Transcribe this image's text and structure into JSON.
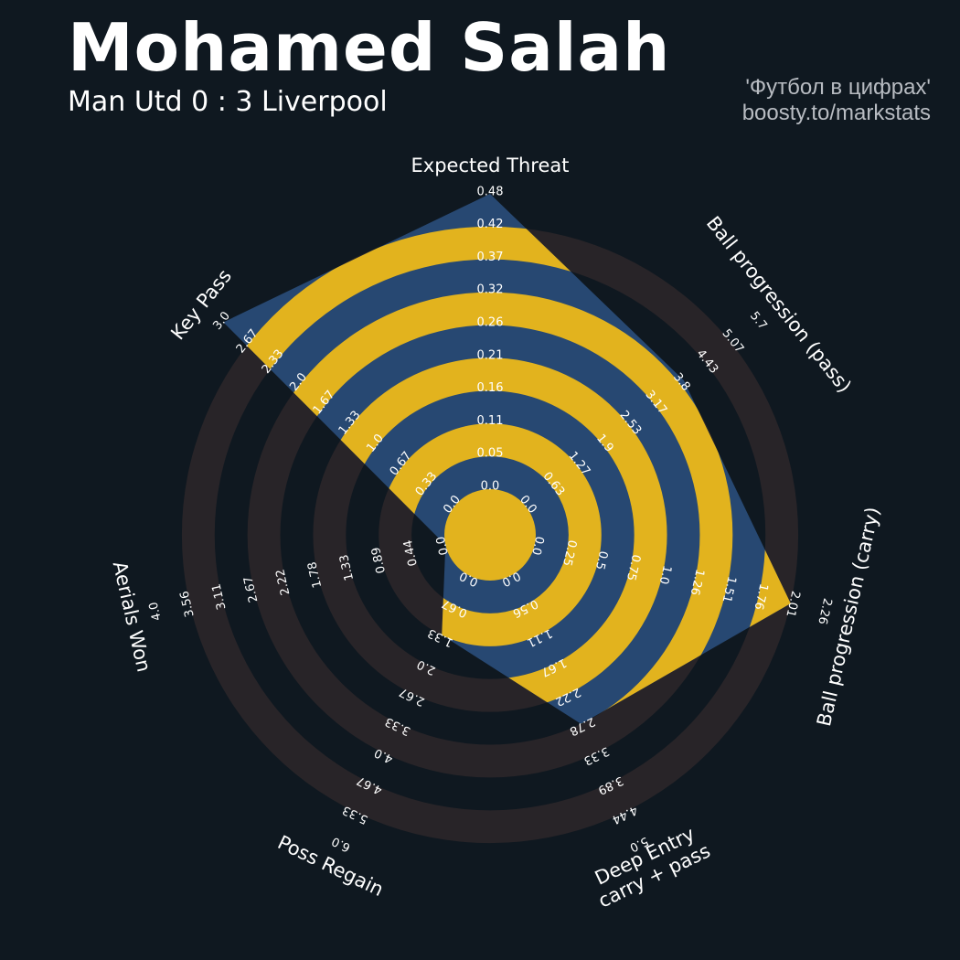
{
  "header": {
    "title": "Mohamed Salah",
    "subtitle": "Man Utd 0 : 3 Liverpool",
    "credit_line1": "'Футбол в цифрах'",
    "credit_line2": "boosty.to/markstats"
  },
  "chart_data": {
    "type": "radar",
    "title": "Mohamed Salah",
    "subtitle": "Man Utd 0 : 3 Liverpool",
    "axes": [
      {
        "label": "Expected Threat",
        "value": 0.48,
        "ticks": [
          "0.0",
          "0.05",
          "0.11",
          "0.16",
          "0.21",
          "0.26",
          "0.32",
          "0.37",
          "0.42",
          "0.48"
        ]
      },
      {
        "label": "Ball progression (pass)",
        "value": 3.9,
        "ticks": [
          "0.0",
          "0.63",
          "1.27",
          "1.9",
          "2.53",
          "3.17",
          "3.8",
          "4.43",
          "5.07",
          "5.7"
        ]
      },
      {
        "label": "Ball progression (carry)",
        "value": 2.01,
        "ticks": [
          "0.0",
          "0.25",
          "0.5",
          "0.75",
          "1.0",
          "1.26",
          "1.51",
          "1.76",
          "2.01",
          "2.26"
        ]
      },
      {
        "label": "Deep Entry\ncarry + pass",
        "value": 2.78,
        "ticks": [
          "0.0",
          "0.56",
          "1.11",
          "1.67",
          "2.22",
          "2.78",
          "3.33",
          "3.89",
          "4.44",
          "5.0"
        ]
      },
      {
        "label": "Poss Regain",
        "value": 1.33,
        "ticks": [
          "0.0",
          "0.67",
          "1.33",
          "2.0",
          "2.67",
          "3.33",
          "4.0",
          "4.67",
          "5.33",
          "6.0"
        ]
      },
      {
        "label": "Aerials Won",
        "value": 0.0,
        "ticks": [
          "0.0",
          "0.44",
          "0.89",
          "1.33",
          "1.78",
          "2.22",
          "2.67",
          "3.11",
          "3.56",
          "4.0"
        ]
      },
      {
        "label": "Key Pass",
        "value": 3.0,
        "ticks": [
          "0.0",
          "0.33",
          "0.67",
          "1.0",
          "1.33",
          "1.67",
          "2.0",
          "2.33",
          "2.67",
          "3.0"
        ]
      }
    ],
    "colors": {
      "background": "#0f1820",
      "ring_dark": "#282428",
      "ring_highlight": "#e2b31e",
      "polygon_fill": "#274872"
    }
  }
}
